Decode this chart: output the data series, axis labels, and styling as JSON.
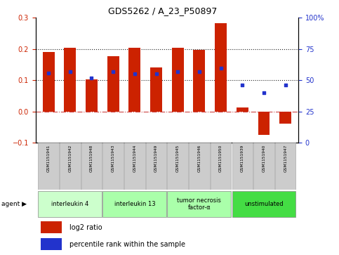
{
  "title": "GDS5262 / A_23_P50897",
  "samples": [
    "GSM1151941",
    "GSM1151942",
    "GSM1151948",
    "GSM1151943",
    "GSM1151944",
    "GSM1151949",
    "GSM1151945",
    "GSM1151946",
    "GSM1151950",
    "GSM1151939",
    "GSM1151940",
    "GSM1151947"
  ],
  "log2_ratio": [
    0.19,
    0.205,
    0.102,
    0.178,
    0.205,
    0.142,
    0.205,
    0.198,
    0.283,
    0.012,
    -0.075,
    -0.038
  ],
  "percentile_rank": [
    56,
    57,
    52,
    57,
    55,
    55,
    57,
    57,
    60,
    46,
    40,
    46
  ],
  "groups": [
    {
      "label": "interleukin 4",
      "indices": [
        0,
        1,
        2
      ],
      "color": "#ccffcc"
    },
    {
      "label": "interleukin 13",
      "indices": [
        3,
        4,
        5
      ],
      "color": "#aaffaa"
    },
    {
      "label": "tumor necrosis\nfactor-α",
      "indices": [
        6,
        7,
        8
      ],
      "color": "#aaffaa"
    },
    {
      "label": "unstimulated",
      "indices": [
        9,
        10,
        11
      ],
      "color": "#44dd44"
    }
  ],
  "bar_color": "#cc2200",
  "dot_color": "#2233cc",
  "left_ylim": [
    -0.1,
    0.3
  ],
  "right_ylim": [
    0,
    100
  ],
  "left_yticks": [
    -0.1,
    0.0,
    0.1,
    0.2,
    0.3
  ],
  "right_yticks": [
    0,
    25,
    50,
    75,
    100
  ],
  "right_yticklabels": [
    "0",
    "25",
    "50",
    "75",
    "100%"
  ],
  "legend_items": [
    "log2 ratio",
    "percentile rank within the sample"
  ],
  "legend_colors": [
    "#cc2200",
    "#2233cc"
  ],
  "sample_box_color": "#cccccc",
  "sample_box_edge": "#999999"
}
